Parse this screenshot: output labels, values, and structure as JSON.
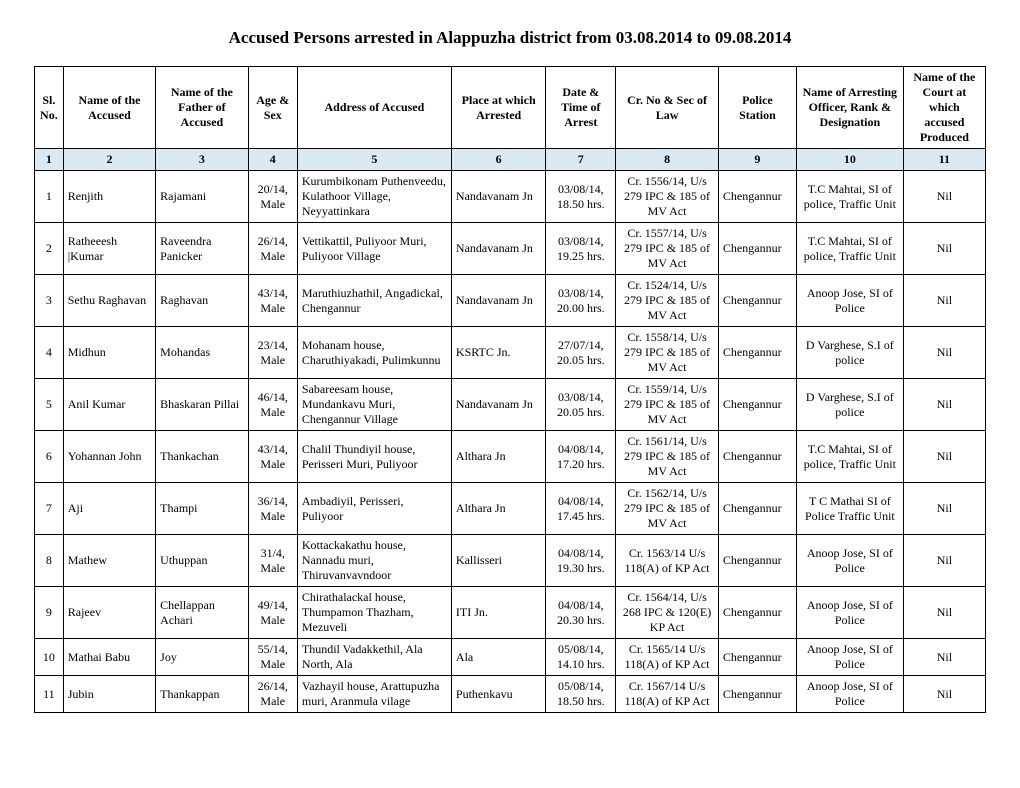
{
  "title": "Accused Persons arrested in Alappuzha district from 03.08.2014 to 09.08.2014",
  "headers": [
    "Sl. No.",
    "Name of the Accused",
    "Name of the Father of Accused",
    "Age & Sex",
    "Address of Accused",
    "Place at which Arrested",
    "Date & Time of Arrest",
    "Cr. No & Sec of Law",
    "Police Station",
    "Name of Arresting Officer, Rank & Designation",
    "Name of the Court at which accused Produced"
  ],
  "colnums": [
    "1",
    "2",
    "3",
    "4",
    "5",
    "6",
    "7",
    "8",
    "9",
    "10",
    "11"
  ],
  "rows": [
    {
      "sl": "1",
      "name": "Renjith",
      "father": "Rajamani",
      "age": "20/14, Male",
      "address": "Kurumbikonam Puthenveedu, Kulathoor Village, Neyyattinkara",
      "place": "Nandavanam Jn",
      "datetime": "03/08/14, 18.50 hrs.",
      "crno": "Cr. 1556/14, U/s 279 IPC & 185 of MV Act",
      "station": "Chengannur",
      "officer": "T.C Mahtai, SI of police, Traffic Unit",
      "court": "Nil"
    },
    {
      "sl": "2",
      "name": "Ratheeesh |Kumar",
      "father": "Raveendra Panicker",
      "age": "26/14, Male",
      "address": "Vettikattil, Puliyoor Muri, Puliyoor Village",
      "place": "Nandavanam Jn",
      "datetime": "03/08/14, 19.25 hrs.",
      "crno": "Cr. 1557/14, U/s 279 IPC & 185 of MV Act",
      "station": "Chengannur",
      "officer": "T.C Mahtai, SI of police, Traffic Unit",
      "court": "Nil"
    },
    {
      "sl": "3",
      "name": "Sethu Raghavan",
      "father": "Raghavan",
      "age": "43/14, Male",
      "address": "Maruthiuzhathil, Angadickal, Chengannur",
      "place": "Nandavanam Jn",
      "datetime": "03/08/14, 20.00 hrs.",
      "crno": "Cr. 1524/14, U/s 279 IPC & 185 of MV Act",
      "station": "Chengannur",
      "officer": "Anoop Jose, SI of Police",
      "court": "Nil"
    },
    {
      "sl": "4",
      "name": "Midhun",
      "father": "Mohandas",
      "age": "23/14, Male",
      "address": "Mohanam house, Charuthiyakadi, Pulimkunnu",
      "place": "KSRTC Jn.",
      "datetime": "27/07/14, 20.05 hrs.",
      "crno": "Cr. 1558/14, U/s 279 IPC & 185 of MV Act",
      "station": "Chengannur",
      "officer": "D Varghese, S.I of police",
      "court": "Nil"
    },
    {
      "sl": "5",
      "name": "Anil Kumar",
      "father": "Bhaskaran Pillai",
      "age": "46/14, Male",
      "address": "Sabareesam house, Mundankavu Muri, Chengannur Village",
      "place": "Nandavanam Jn",
      "datetime": "03/08/14, 20.05 hrs.",
      "crno": "Cr. 1559/14, U/s 279 IPC & 185 of MV Act",
      "station": "Chengannur",
      "officer": "D Varghese, S.I of police",
      "court": "Nil"
    },
    {
      "sl": "6",
      "name": "Yohannan John",
      "father": "Thankachan",
      "age": "43/14, Male",
      "address": "Chalil Thundiyil house, Perisseri Muri, Puliyoor",
      "place": "Althara Jn",
      "datetime": "04/08/14, 17.20 hrs.",
      "crno": "Cr. 1561/14, U/s 279 IPC & 185 of MV Act",
      "station": "Chengannur",
      "officer": "T.C Mahtai, SI of police, Traffic Unit",
      "court": "Nil"
    },
    {
      "sl": "7",
      "name": "Aji",
      "father": "Thampi",
      "age": "36/14, Male",
      "address": "Ambadiyil, Perisseri, Puliyoor",
      "place": "Althara Jn",
      "datetime": "04/08/14, 17.45 hrs.",
      "crno": "Cr. 1562/14, U/s 279 IPC & 185 of MV Act",
      "station": "Chengannur",
      "officer": "T C Mathai SI of Police Traffic Unit",
      "court": "Nil"
    },
    {
      "sl": "8",
      "name": "Mathew",
      "father": "Uthuppan",
      "age": "31/4, Male",
      "address": "Kottackakathu house, Nannadu muri, Thiruvanvavndoor",
      "place": "Kallisseri",
      "datetime": "04/08/14, 19.30 hrs.",
      "crno": "Cr. 1563/14 U/s 118(A) of KP Act",
      "station": "Chengannur",
      "officer": "Anoop Jose, SI of Police",
      "court": "Nil"
    },
    {
      "sl": "9",
      "name": "Rajeev",
      "father": "Chellappan Achari",
      "age": "49/14, Male",
      "address": "Chirathalackal house, Thumpamon Thazham, Mezuveli",
      "place": "ITI Jn.",
      "datetime": "04/08/14, 20.30 hrs.",
      "crno": "Cr. 1564/14, U/s 268 IPC & 120(E) KP Act",
      "station": "Chengannur",
      "officer": "Anoop Jose, SI of Police",
      "court": "Nil"
    },
    {
      "sl": "10",
      "name": "Mathai Babu",
      "father": "Joy",
      "age": "55/14, Male",
      "address": "Thundil Vadakkethil, Ala North, Ala",
      "place": "Ala",
      "datetime": "05/08/14, 14.10 hrs.",
      "crno": "Cr. 1565/14 U/s 118(A) of KP Act",
      "station": "Chengannur",
      "officer": "Anoop Jose, SI of Police",
      "court": "Nil"
    },
    {
      "sl": "11",
      "name": "Jubin",
      "father": "Thankappan",
      "age": "26/14, Male",
      "address": "Vazhayil house, Arattupuzha muri, Aranmula vilage",
      "place": "Puthenkavu",
      "datetime": "05/08/14, 18.50 hrs.",
      "crno": "Cr. 1567/14 U/s 118(A) of KP Act",
      "station": "Chengannur",
      "officer": "Anoop Jose, SI of Police",
      "court": "Nil"
    }
  ]
}
